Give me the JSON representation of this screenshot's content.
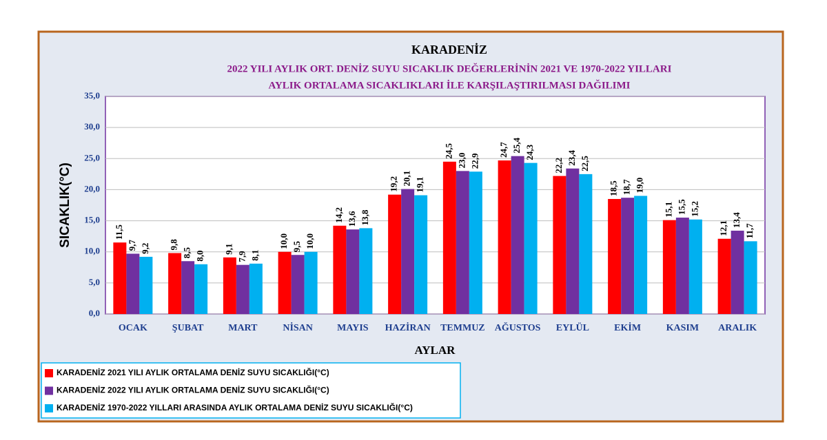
{
  "chart_data": {
    "type": "bar",
    "title": "KARADENİZ",
    "subtitle_lines": [
      "2022 YILI AYLIK ORT. DENİZ SUYU SICAKLIK DEĞERLERİNİN 2021 VE 1970-2022  YILLARI",
      "AYLIK ORTALAMA SICAKLIKLARI İLE KARŞILAŞTIRILMASI DAĞILIMI"
    ],
    "y_label": "SICAKLIK(°C)",
    "x_label": "AYLAR",
    "categories": [
      "OCAK",
      "ŞUBAT",
      "MART",
      "NİSAN",
      "MAYIS",
      "HAZİRAN",
      "TEMMUZ",
      "AĞUSTOS",
      "EYLÜL",
      "EKİM",
      "KASIM",
      "ARALIK"
    ],
    "series": [
      {
        "name": "KARADENİZ  2021 YILI AYLIK ORTALAMA DENİZ SUYU SICAKLIĞI(°C)",
        "color": "#ff0000",
        "values": [
          11.5,
          9.8,
          9.1,
          10.0,
          14.2,
          19.2,
          24.5,
          24.7,
          22.2,
          18.5,
          15.1,
          12.1
        ],
        "value_labels": [
          "11,5",
          "9,8",
          "9,1",
          "10,0",
          "14,2",
          "19,2",
          "24,5",
          "24,7",
          "22,2",
          "18,5",
          "15,1",
          "12,1"
        ]
      },
      {
        "name": "KARADENİZ 2022 YILI AYLIK ORTALAMA DENİZ SUYU SICAKLIĞI(°C)",
        "color": "#7030a0",
        "values": [
          9.7,
          8.5,
          7.9,
          9.5,
          13.6,
          20.1,
          23.0,
          25.4,
          23.4,
          18.7,
          15.5,
          13.4
        ],
        "value_labels": [
          "9,7",
          "8,5",
          "7,9",
          "9,5",
          "13,6",
          "20,1",
          "23,0",
          "25,4",
          "23,4",
          "18,7",
          "15,5",
          "13,4"
        ]
      },
      {
        "name": "KARADENİZ  1970-2022 YILLARI ARASINDA AYLIK ORTALAMA DENİZ SUYU SICAKLIĞI(°C)",
        "color": "#00b0f0",
        "values": [
          9.2,
          8.0,
          8.1,
          10.0,
          13.8,
          19.1,
          22.9,
          24.3,
          22.5,
          19.0,
          15.2,
          11.7
        ],
        "value_labels": [
          "9,2",
          "8,0",
          "8,1",
          "10,0",
          "13,8",
          "19,1",
          "22,9",
          "24,3",
          "22,5",
          "19,0",
          "15,2",
          "11,7"
        ]
      }
    ],
    "ylim": [
      0,
      35
    ],
    "yticks": [
      {
        "value": 0,
        "label": "0,0"
      },
      {
        "value": 5,
        "label": "5,0"
      },
      {
        "value": 10,
        "label": "10,0"
      },
      {
        "value": 15,
        "label": "15,0"
      },
      {
        "value": 20,
        "label": "20,0"
      },
      {
        "value": 25,
        "label": "25,0"
      },
      {
        "value": 30,
        "label": "30,0"
      },
      {
        "value": 35,
        "label": "35,0"
      }
    ],
    "grid": true
  }
}
